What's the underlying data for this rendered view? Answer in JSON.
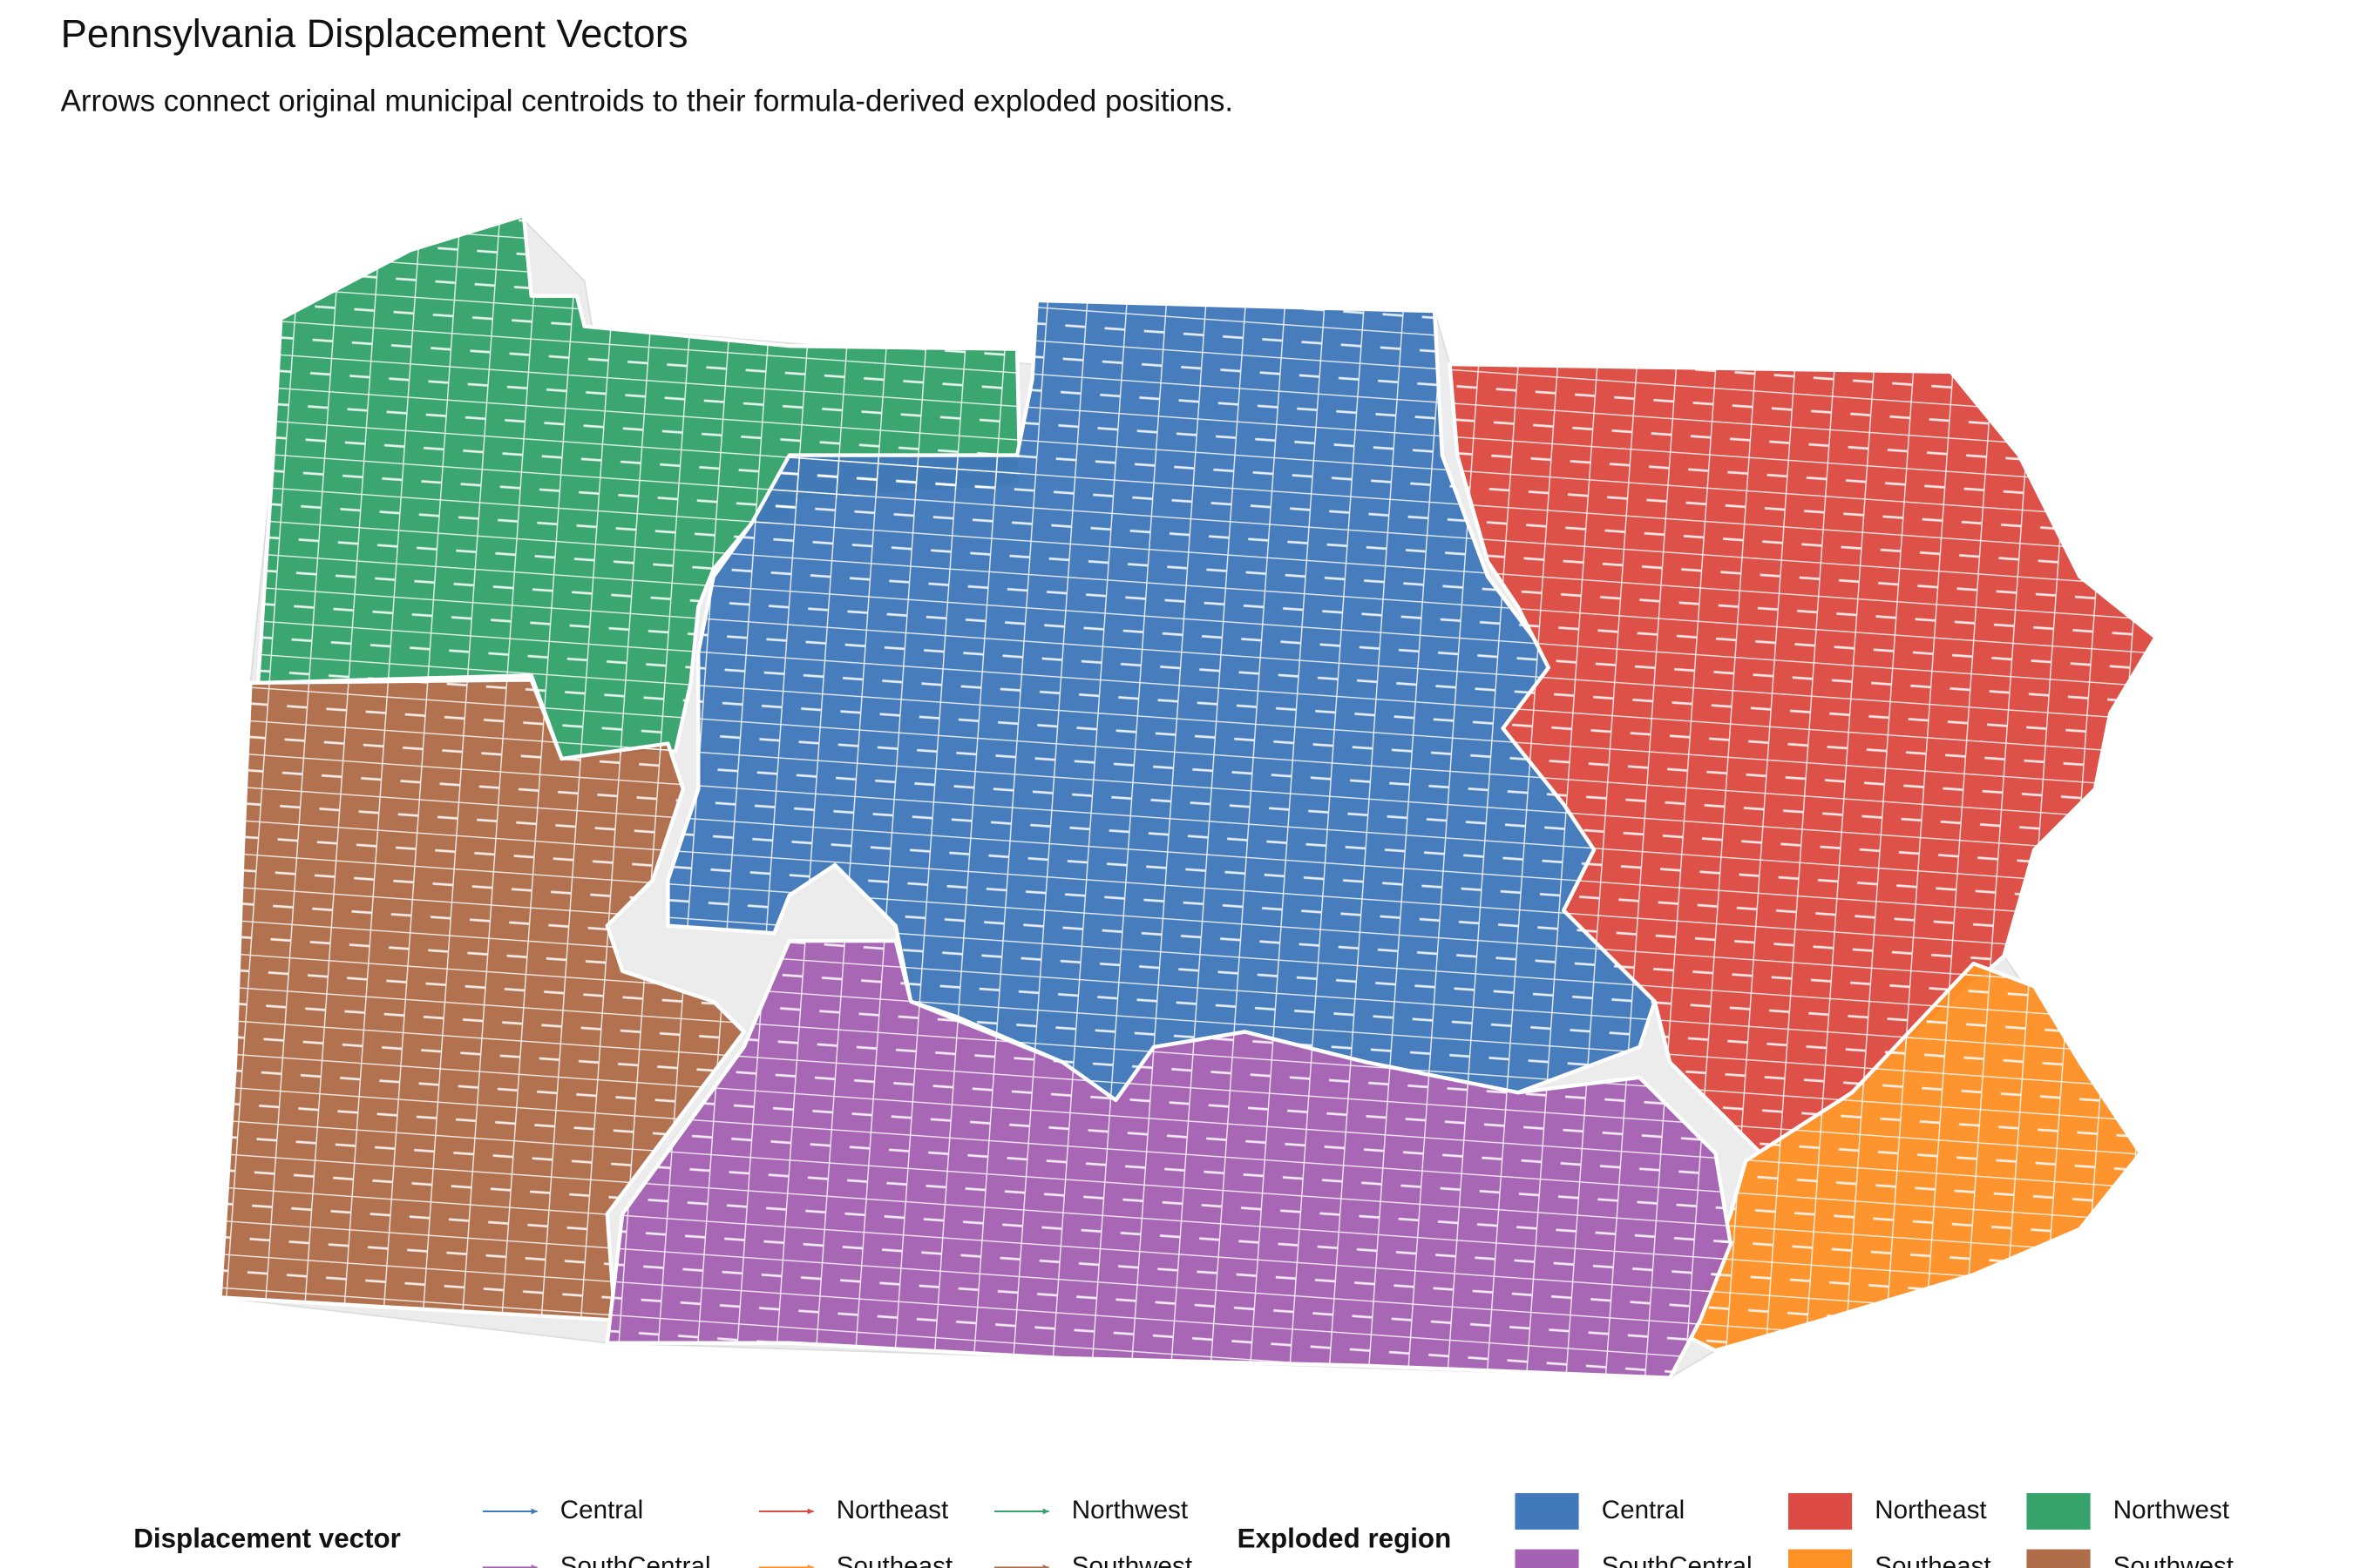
{
  "title": "Pennsylvania Displacement Vectors",
  "subtitle": "Arrows connect original municipal centroids to their formula-derived exploded positions.",
  "legends": [
    {
      "title": "Displacement vector",
      "entries": [
        {
          "label": "Central",
          "color": "#4279bb"
        },
        {
          "label": "SouthCentral",
          "color": "#a562b3"
        },
        {
          "label": "Northeast",
          "color": "#dc4b43"
        },
        {
          "label": "Southeast",
          "color": "#fd9126"
        },
        {
          "label": "Northwest",
          "color": "#35a36a"
        },
        {
          "label": "Southwest",
          "color": "#b06d4a"
        }
      ]
    },
    {
      "title": "Exploded region",
      "entries": [
        {
          "label": "Central",
          "color": "#4279bb"
        },
        {
          "label": "SouthCentral",
          "color": "#a562b3"
        },
        {
          "label": "Northeast",
          "color": "#dc4b43"
        },
        {
          "label": "Southeast",
          "color": "#fd9126"
        },
        {
          "label": "Northwest",
          "color": "#35a36a"
        },
        {
          "label": "Southwest",
          "color": "#b06d4a"
        }
      ]
    }
  ]
}
